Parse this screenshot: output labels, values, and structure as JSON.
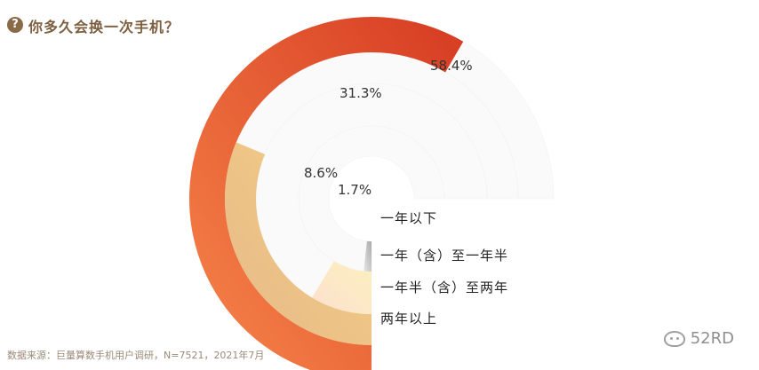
{
  "header": {
    "icon_glyph": "?",
    "title": "你多久会换一次手机？"
  },
  "chart_data": {
    "type": "radial-bar",
    "title": "你多久会换一次手机？",
    "max": 100,
    "series": [
      {
        "name": "两年以上",
        "value": 58.4,
        "label": "58.4%",
        "color_start": "#f7864a",
        "color_end": "#d63b22"
      },
      {
        "name": "一年半（含）至两年",
        "value": 31.3,
        "label": "31.3%",
        "color_start": "#e8b989",
        "color_end": "#f2cf84"
      },
      {
        "name": "一年（含）至一年半",
        "value": 8.6,
        "label": "8.6%",
        "color_start": "#fde0cf",
        "color_end": "#fbf0bd"
      },
      {
        "name": "一年以下",
        "value": 1.7,
        "label": "1.7%",
        "color_start": "#e6e6e6",
        "color_end": "#aaaaaa"
      }
    ],
    "track_color": "#fafafa"
  },
  "footer": {
    "source": "数据来源：巨量算数手机用户调研，N=7521，2021年7月",
    "watermark": "52RD"
  }
}
